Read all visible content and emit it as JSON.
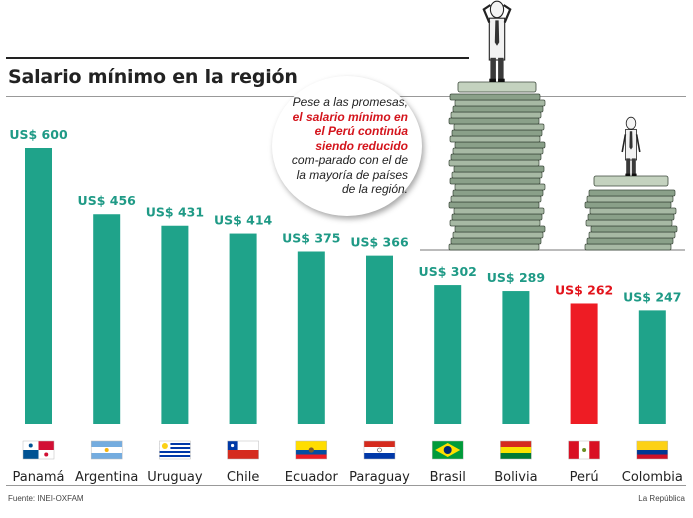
{
  "chart_data": {
    "type": "bar",
    "title": "Salario mínimo en la región",
    "categories": [
      "Panamá",
      "Argentina",
      "Uruguay",
      "Chile",
      "Ecuador",
      "Paraguay",
      "Brasil",
      "Bolivia",
      "Perú",
      "Colombia"
    ],
    "values": [
      600,
      456,
      431,
      414,
      375,
      366,
      302,
      289,
      262,
      247
    ],
    "value_labels": [
      "US$ 600",
      "US$ 456",
      "US$ 431",
      "US$ 414",
      "US$ 375",
      "US$ 366",
      "US$ 302",
      "US$ 289",
      "US$ 262",
      "US$ 247"
    ],
    "highlight_category": "Perú",
    "xlabel": "",
    "ylabel": "",
    "ylim": [
      0,
      600
    ],
    "grid": false,
    "colors": {
      "bar": "#1fa38a",
      "highlight": "#ee1c24",
      "value_label": "#1f9a86",
      "highlight_label": "#e3141c"
    }
  },
  "callout": {
    "line1": "Pese a las promesas,",
    "highlight": "el salario mínimo en el Perú continúa siendo reducido",
    "line2": "com-parado con el de la mayoría de países de la región."
  },
  "flags": [
    "panama-flag-icon",
    "argentina-flag-icon",
    "uruguay-flag-icon",
    "chile-flag-icon",
    "ecuador-flag-icon",
    "paraguay-flag-icon",
    "brazil-flag-icon",
    "bolivia-flag-icon",
    "peru-flag-icon",
    "colombia-flag-icon"
  ],
  "illustration": "money-stacks-with-men-icon",
  "footer": {
    "source": "Fuente: INEI-OXFAM",
    "credit": "La República"
  }
}
